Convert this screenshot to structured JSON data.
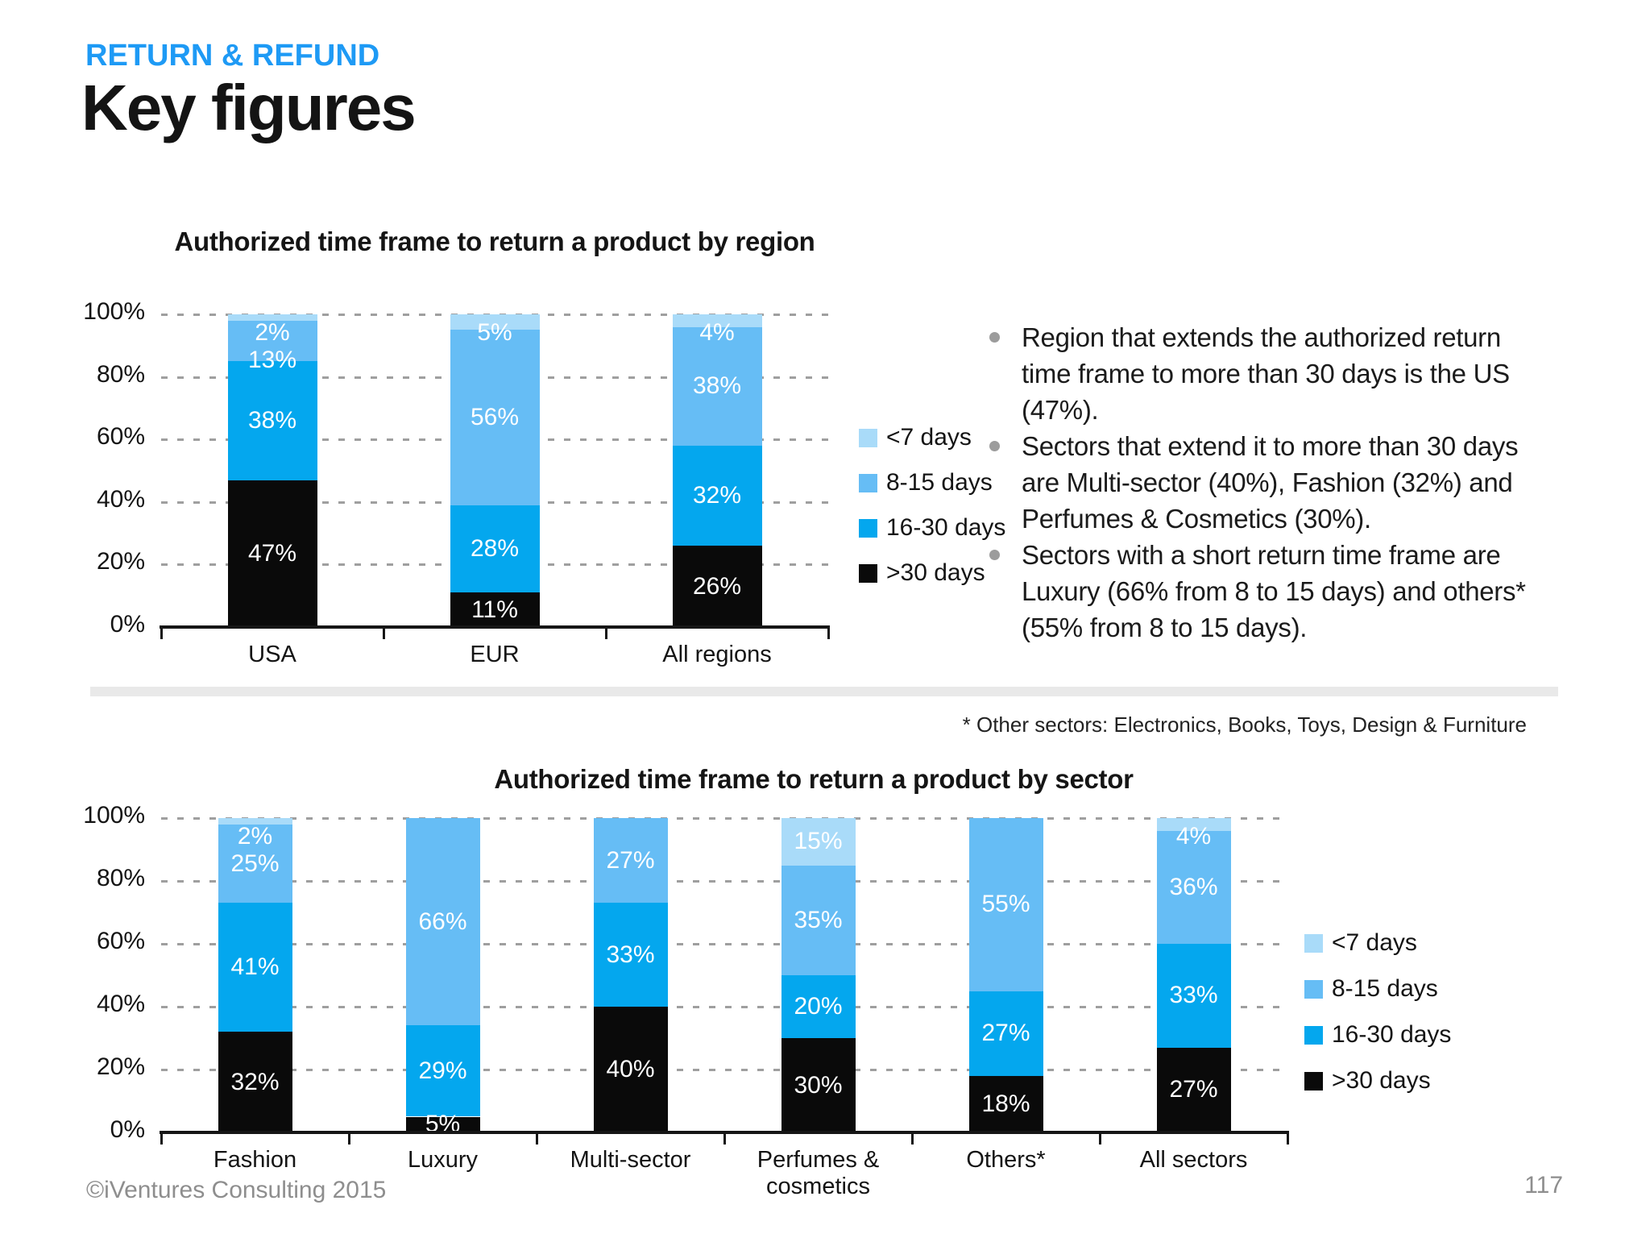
{
  "slide": {
    "eyebrow": "RETURN & REFUND",
    "title": "Key figures",
    "footnote": "* Other sectors: Electronics, Books, Toys, Design & Furniture",
    "footer_left": "©iVentures Consulting 2015",
    "page_number": "117"
  },
  "bullets": [
    "Region that extends the authorized return time frame to more than 30 days is the US (47%).",
    "Sectors that extend it to more than 30 days are Multi-sector (40%), Fashion (32%) and Perfumes & Cosmetics (30%).",
    "Sectors with a short return time frame are Luxury (66% from 8 to 15 days) and others* (55% from 8 to 15 days)."
  ],
  "legend": [
    "<7 days",
    "8-15 days",
    "16-30 days",
    ">30 days"
  ],
  "colors": {
    "accent_blue": "#1E9AF5",
    "lt7_days": "#A9DBF9",
    "d8_15_days": "#66BDF5",
    "d16_30_days": "#04A7EE",
    "gt30_days": "#0A0A0A",
    "gridline": "#9F9F9F",
    "axis": "#161616",
    "divider": "#E9E9E9",
    "bullet_dot": "#9C9C9C",
    "footer_text": "#8E8E8E"
  },
  "chart_data": [
    {
      "type": "bar",
      "stacked": true,
      "title": "Authorized time frame to return a product by region",
      "categories": [
        "USA",
        "EUR",
        "All regions"
      ],
      "series": [
        {
          "name": ">30 days",
          "color": "#0A0A0A",
          "values": [
            47,
            11,
            26
          ]
        },
        {
          "name": "16-30 days",
          "color": "#04A7EE",
          "values": [
            38,
            28,
            32
          ]
        },
        {
          "name": "8-15 days",
          "color": "#66BDF5",
          "values": [
            13,
            56,
            38
          ]
        },
        {
          "name": "<7 days",
          "color": "#A9DBF9",
          "values": [
            2,
            5,
            4
          ]
        }
      ],
      "value_suffix": "%",
      "yticks": [
        0,
        20,
        40,
        60,
        80,
        100
      ],
      "ylim": [
        0,
        100
      ],
      "grid": true,
      "legend_position": "right"
    },
    {
      "type": "bar",
      "stacked": true,
      "title": "Authorized time frame to return a product by sector",
      "categories": [
        "Fashion",
        "Luxury",
        "Multi-sector",
        "Perfumes & cosmetics",
        "Others*",
        "All sectors"
      ],
      "series": [
        {
          "name": ">30 days",
          "color": "#0A0A0A",
          "values": [
            32,
            5,
            40,
            30,
            18,
            27
          ]
        },
        {
          "name": "16-30 days",
          "color": "#04A7EE",
          "values": [
            41,
            29,
            33,
            20,
            27,
            33
          ]
        },
        {
          "name": "8-15 days",
          "color": "#66BDF5",
          "values": [
            25,
            66,
            27,
            35,
            55,
            36
          ]
        },
        {
          "name": "<7 days",
          "color": "#A9DBF9",
          "values": [
            2,
            0,
            0,
            15,
            0,
            4
          ]
        }
      ],
      "value_suffix": "%",
      "yticks": [
        0,
        20,
        40,
        60,
        80,
        100
      ],
      "ylim": [
        0,
        100
      ],
      "grid": true,
      "legend_position": "right"
    }
  ]
}
